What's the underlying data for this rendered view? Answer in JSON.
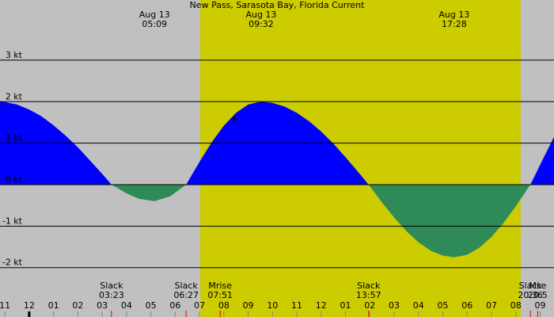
{
  "chart_data": {
    "type": "area",
    "title": "New Pass, Sarasota Bay, Florida Current",
    "x": [
      -1.2,
      -1.0,
      -0.5,
      0,
      0.5,
      1,
      1.5,
      2,
      2.5,
      3,
      3.383,
      4,
      4.5,
      5.15,
      5.8,
      6.45,
      7,
      7.5,
      8,
      8.5,
      9,
      9.533,
      10,
      10.5,
      11,
      11.5,
      12,
      12.5,
      13,
      13.5,
      13.95,
      14.5,
      15,
      15.5,
      16,
      16.5,
      17,
      17.467,
      18,
      18.5,
      19,
      19.5,
      20,
      20.6,
      21,
      21.57
    ],
    "values": [
      2.0,
      1.99,
      1.93,
      1.81,
      1.65,
      1.43,
      1.18,
      0.9,
      0.58,
      0.26,
      0,
      -0.21,
      -0.34,
      -0.4,
      -0.28,
      0,
      0.55,
      1.02,
      1.42,
      1.73,
      1.93,
      2.0,
      1.97,
      1.88,
      1.73,
      1.53,
      1.28,
      0.99,
      0.66,
      0.32,
      0,
      -0.43,
      -0.79,
      -1.12,
      -1.39,
      -1.59,
      -1.71,
      -1.75,
      -1.69,
      -1.52,
      -1.26,
      -0.92,
      -0.52,
      0,
      0.48,
      1.15
    ],
    "positive_color": "#0000ff",
    "negative_color": "#2e8b57",
    "xlim": [
      -1.2,
      21.57
    ],
    "ylim": [
      -3.19,
      4.45
    ],
    "xticks": [
      {
        "value": -1,
        "label": "11"
      },
      {
        "value": 0,
        "label": "12"
      },
      {
        "value": 1,
        "label": "01"
      },
      {
        "value": 2,
        "label": "02"
      },
      {
        "value": 3,
        "label": "03"
      },
      {
        "value": 4,
        "label": "04"
      },
      {
        "value": 5,
        "label": "05"
      },
      {
        "value": 6,
        "label": "06"
      },
      {
        "value": 7,
        "label": "07"
      },
      {
        "value": 8,
        "label": "08"
      },
      {
        "value": 9,
        "label": "09"
      },
      {
        "value": 10,
        "label": "10"
      },
      {
        "value": 11,
        "label": "11"
      },
      {
        "value": 12,
        "label": "12"
      },
      {
        "value": 13,
        "label": "01"
      },
      {
        "value": 14,
        "label": "02"
      },
      {
        "value": 15,
        "label": "03"
      },
      {
        "value": 16,
        "label": "04"
      },
      {
        "value": 17,
        "label": "05"
      },
      {
        "value": 18,
        "label": "06"
      },
      {
        "value": 19,
        "label": "07"
      },
      {
        "value": 20,
        "label": "08"
      },
      {
        "value": 21,
        "label": "09"
      }
    ],
    "yticks": [
      {
        "value": 3,
        "label": "3 kt"
      },
      {
        "value": 2,
        "label": "2 kt"
      },
      {
        "value": 1,
        "label": "1 kt"
      },
      {
        "value": 0,
        "label": "0 kt"
      },
      {
        "value": -1,
        "label": "-1 kt"
      },
      {
        "value": -2,
        "label": "-2 kt"
      }
    ],
    "grid": true,
    "daylight": [
      7.03,
      20.2
    ],
    "extremes": [
      {
        "date": "Aug 13",
        "time": "05:09",
        "hour": 5.15
      },
      {
        "date": "Aug 13",
        "time": "09:32",
        "hour": 9.533
      },
      {
        "date": "Aug 13",
        "time": "17:28",
        "hour": 17.467
      }
    ],
    "events": [
      {
        "label": "Slack",
        "time": "03:23",
        "hour": 3.383
      },
      {
        "label": "Slack",
        "time": "06:27",
        "hour": 6.45
      },
      {
        "label": "Mrise",
        "time": "07:51",
        "hour": 7.85
      },
      {
        "label": "Slack",
        "time": "13:57",
        "hour": 13.95
      },
      {
        "label": "Slack",
        "time": "20:36",
        "hour": 20.6
      },
      {
        "label": "Mse",
        "time": "20:5",
        "hour": 20.9
      }
    ]
  }
}
